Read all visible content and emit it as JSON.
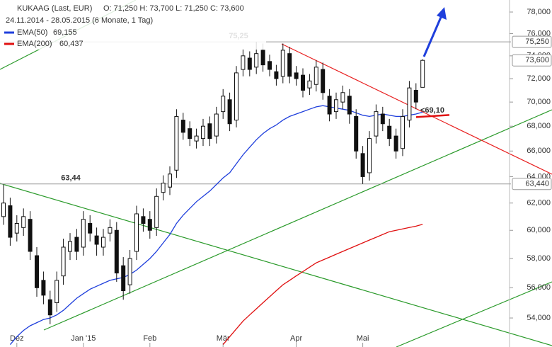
{
  "chart_data": {
    "type": "candlestick",
    "title": "KUKAAG (Last, EUR)",
    "ohlc_text": "O: 71,250  H: 73,700  L: 71,250  C: 73,600",
    "subtitle": "24.11.2014 - 28.05.2015 (6 Monate, 1 Tag)",
    "log_scale": true,
    "ylim": [
      52.15,
      78.8
    ],
    "yticks": [
      {
        "value": 54,
        "label": "54,000"
      },
      {
        "value": 56,
        "label": "56,000"
      },
      {
        "value": 58,
        "label": "58,000"
      },
      {
        "value": 60,
        "label": "60,000"
      },
      {
        "value": 62,
        "label": "62,000"
      },
      {
        "value": 64,
        "label": "64,000"
      },
      {
        "value": 66,
        "label": "66,000"
      },
      {
        "value": 68,
        "label": "68,000"
      },
      {
        "value": 70,
        "label": "70,000"
      },
      {
        "value": 72,
        "label": "72,000"
      },
      {
        "value": 74,
        "label": "74,000"
      },
      {
        "value": 76,
        "label": "76,000"
      },
      {
        "value": 78,
        "label": "78,000"
      }
    ],
    "xticks": [
      {
        "value": 2,
        "label": "Dez"
      },
      {
        "value": 12,
        "label": "Jan '15"
      },
      {
        "value": 22,
        "label": "Feb"
      },
      {
        "value": 33,
        "label": "Mär"
      },
      {
        "value": 44,
        "label": "Apr"
      },
      {
        "value": 54,
        "label": "Mai"
      }
    ],
    "open": [
      61.0,
      61.8,
      59.8,
      60.2,
      60.8,
      58.2,
      56.5,
      55.2,
      55.0,
      56.8,
      58.5,
      59.5,
      58.8,
      60.5,
      59.6,
      58.8,
      59.8,
      60.0,
      57.5,
      56.2,
      58.5,
      61.0,
      60.8,
      60.2,
      62.8,
      63.2,
      64.5,
      68.5,
      67.8,
      66.8,
      67.0,
      68.2,
      67.2,
      69.2,
      70.2,
      68.5,
      72.8,
      73.8,
      73.0,
      74.5,
      73.5,
      72.6,
      72.2,
      74.2,
      72.5,
      72.3,
      71.2,
      71.5,
      72.8,
      70.5,
      69.2,
      70.0,
      70.5,
      68.8,
      65.8,
      64.3,
      67.2,
      69.0,
      68.0,
      67.2,
      66.2,
      68.5,
      71.0,
      71.25
    ],
    "high": [
      63.4,
      62.4,
      61.1,
      61.6,
      61.4,
      58.8,
      57.1,
      55.8,
      57.1,
      59.4,
      59.8,
      60.1,
      61.4,
      61.1,
      60.2,
      60.1,
      60.8,
      60.6,
      58.1,
      58.6,
      61.8,
      61.6,
      61.4,
      63.1,
      64.1,
      64.8,
      69.4,
      69.1,
      68.4,
      67.8,
      68.6,
      68.8,
      69.6,
      71.1,
      70.8,
      73.1,
      74.6,
      74.4,
      75.25,
      75.1,
      74.1,
      73.2,
      75.1,
      74.8,
      73.1,
      72.9,
      72.4,
      73.6,
      73.4,
      71.1,
      70.8,
      71.4,
      71.1,
      69.4,
      66.4,
      67.6,
      69.8,
      69.6,
      68.6,
      67.8,
      69.4,
      71.8,
      71.6,
      73.7
    ],
    "low": [
      60.4,
      58.9,
      59.2,
      59.6,
      57.9,
      55.4,
      54.9,
      53.6,
      54.4,
      56.2,
      57.9,
      57.9,
      58.2,
      59.2,
      58.2,
      58.2,
      59.2,
      56.4,
      55.2,
      55.6,
      57.9,
      59.9,
      59.4,
      59.6,
      62.2,
      62.6,
      63.9,
      66.9,
      66.4,
      66.2,
      66.4,
      66.4,
      66.6,
      68.6,
      67.6,
      67.9,
      72.2,
      72.2,
      72.4,
      72.6,
      72.2,
      71.4,
      71.6,
      71.6,
      71.4,
      70.4,
      70.6,
      70.9,
      70.2,
      68.4,
      68.6,
      69.4,
      68.2,
      65.4,
      63.44,
      63.7,
      66.6,
      67.6,
      66.4,
      65.4,
      65.6,
      67.9,
      69.4,
      71.25
    ],
    "close": [
      62.0,
      59.5,
      60.5,
      61.0,
      58.5,
      56.0,
      55.5,
      54.2,
      56.5,
      58.8,
      59.2,
      58.5,
      60.8,
      59.8,
      59.0,
      59.5,
      60.2,
      57.0,
      55.8,
      58.0,
      61.2,
      60.5,
      60.0,
      62.5,
      63.5,
      64.2,
      68.8,
      67.5,
      67.0,
      67.2,
      68.0,
      67.0,
      69.0,
      70.5,
      68.2,
      72.5,
      74.0,
      72.8,
      74.2,
      73.2,
      72.8,
      72.0,
      74.5,
      72.2,
      72.0,
      71.0,
      71.8,
      73.0,
      70.8,
      69.0,
      70.2,
      70.8,
      69.0,
      66.0,
      64.0,
      67.0,
      69.2,
      68.2,
      67.0,
      66.0,
      68.8,
      71.2,
      70.0,
      73.6
    ],
    "series": [
      {
        "name": "EMA(50)",
        "value_label": "69,155",
        "color": "#1f3fdc",
        "values": [
          null,
          52.3,
          52.8,
          53.2,
          53.5,
          53.7,
          53.9,
          54.0,
          54.2,
          54.5,
          54.9,
          55.3,
          55.6,
          55.9,
          56.1,
          56.3,
          56.5,
          56.6,
          56.7,
          56.9,
          57.2,
          57.6,
          58.0,
          58.5,
          59.1,
          59.7,
          60.5,
          61.1,
          61.6,
          62.1,
          62.5,
          62.9,
          63.4,
          63.9,
          64.3,
          65.0,
          65.7,
          66.3,
          66.9,
          67.4,
          67.8,
          68.1,
          68.5,
          68.8,
          69.0,
          69.2,
          69.4,
          69.6,
          69.7,
          69.6,
          69.5,
          69.4,
          69.3,
          69.1,
          68.9,
          68.8,
          68.9,
          69.0,
          68.9,
          68.8,
          68.8,
          68.9,
          69.0,
          69.155
        ]
      },
      {
        "name": "EMA(200)",
        "value_label": "60,437",
        "color": "#e01010",
        "values": [
          null,
          null,
          null,
          null,
          null,
          null,
          null,
          null,
          null,
          null,
          null,
          null,
          null,
          null,
          null,
          null,
          null,
          null,
          null,
          null,
          null,
          null,
          null,
          null,
          null,
          null,
          null,
          null,
          null,
          null,
          null,
          null,
          null,
          52.3,
          52.8,
          53.3,
          53.8,
          54.2,
          54.6,
          55.0,
          55.4,
          55.8,
          56.2,
          56.5,
          56.8,
          57.1,
          57.4,
          57.7,
          57.9,
          58.1,
          58.3,
          58.5,
          58.7,
          58.9,
          59.1,
          59.3,
          59.5,
          59.7,
          59.9,
          60.0,
          60.1,
          60.2,
          60.3,
          60.437
        ]
      }
    ],
    "levels": [
      {
        "value": 75.25,
        "label": "75,25",
        "axis_label": "75,250"
      },
      {
        "value": 63.44,
        "label": "63,44",
        "axis_label": "63,440"
      }
    ],
    "last_price": {
      "value": 73.6,
      "label": "73,600"
    },
    "annotation": {
      "value": 69.1,
      "label": "<69,10"
    }
  }
}
